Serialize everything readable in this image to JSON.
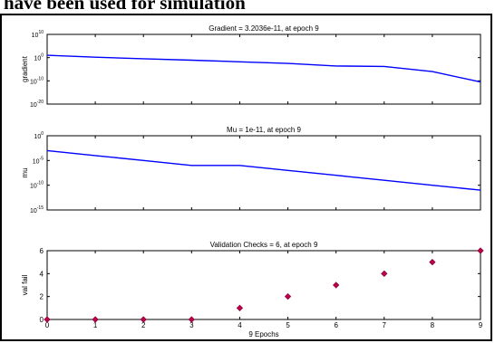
{
  "heading": "have been used for simulation",
  "chart_data": [
    {
      "type": "line",
      "title": "Gradient = 3.2036e-11, at epoch 9",
      "ylabel": "gradient",
      "xlabel": "",
      "yscale": "log",
      "ylim_exp": [
        -20,
        10
      ],
      "ytick_exps": [
        10,
        0,
        -10,
        -20
      ],
      "xlim": [
        0,
        9
      ],
      "x": [
        0,
        1,
        2,
        3,
        4,
        5,
        6,
        7,
        8,
        9
      ],
      "y_exp": [
        1.0,
        0.2,
        -0.5,
        -1.1,
        -1.8,
        -2.5,
        -3.6,
        -3.8,
        -6.0,
        -10.5
      ],
      "color": "#0000ff"
    },
    {
      "type": "line",
      "title": "Mu = 1e-11, at epoch 9",
      "ylabel": "mu",
      "xlabel": "",
      "yscale": "log",
      "ylim_exp": [
        -15,
        0
      ],
      "ytick_exps": [
        0,
        -5,
        -10,
        -15
      ],
      "xlim": [
        0,
        9
      ],
      "x": [
        0,
        1,
        2,
        3,
        4,
        5,
        6,
        7,
        8,
        9
      ],
      "y_exp": [
        -3,
        -4,
        -5,
        -6,
        -6,
        -7,
        -8,
        -9,
        -10,
        -11
      ],
      "color": "#0000ff"
    },
    {
      "type": "scatter",
      "title": "Validation Checks = 6, at epoch 9",
      "ylabel": "val fail",
      "xlabel": "9 Epochs",
      "ylim": [
        0,
        6
      ],
      "yticks": [
        0,
        2,
        4,
        6
      ],
      "xlim": [
        0,
        9
      ],
      "xticks": [
        0,
        1,
        2,
        3,
        4,
        5,
        6,
        7,
        8,
        9
      ],
      "x": [
        0,
        1,
        2,
        3,
        4,
        5,
        6,
        7,
        8,
        9
      ],
      "y": [
        0,
        0,
        0,
        0,
        1,
        2,
        3,
        4,
        5,
        6
      ],
      "color": "#c0004a"
    }
  ]
}
